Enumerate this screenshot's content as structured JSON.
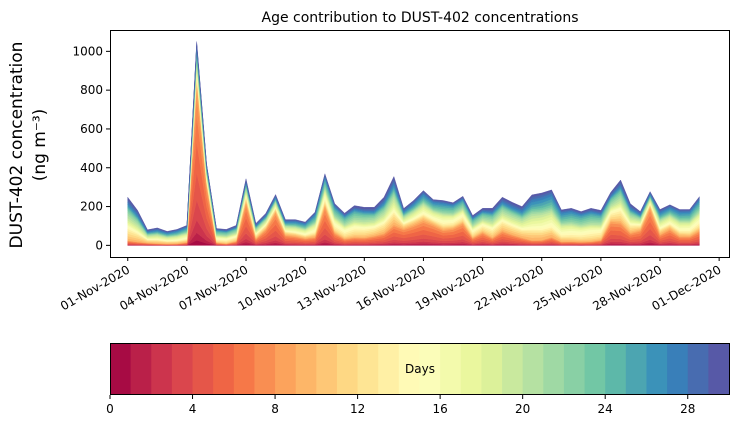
{
  "chart_data": {
    "type": "area",
    "stacked": true,
    "title": "Age contribution to DUST-402 concentrations",
    "ylabel_line1": "DUST-402 concentration",
    "ylabel_line2": "(ng m⁻³)",
    "xlabel": "",
    "ylim": [
      -60,
      1110
    ],
    "yticks": [
      0,
      200,
      400,
      600,
      800,
      1000
    ],
    "x_start": "2020-11-01T00:00",
    "x_step_hours": 12,
    "xlim_days": [
      -0.9,
      30.5
    ],
    "xticks_days": [
      0,
      3,
      6,
      9,
      12,
      15,
      18,
      21,
      24,
      27,
      30
    ],
    "xtick_labels": [
      "01-Nov-2020",
      "04-Nov-2020",
      "07-Nov-2020",
      "10-Nov-2020",
      "13-Nov-2020",
      "16-Nov-2020",
      "19-Nov-2020",
      "22-Nov-2020",
      "25-Nov-2020",
      "28-Nov-2020",
      "01-Dec-2020"
    ],
    "total": [
      248,
      180,
      80,
      90,
      72,
      82,
      103,
      1050,
      420,
      87,
      82,
      103,
      343,
      113,
      164,
      262,
      133,
      133,
      120,
      171,
      369,
      215,
      166,
      205,
      196,
      196,
      248,
      355,
      190,
      231,
      282,
      236,
      231,
      220,
      253,
      154,
      191,
      191,
      248,
      222,
      200,
      260,
      270,
      286,
      183,
      191,
      174,
      191,
      180,
      273,
      337,
      214,
      174,
      277,
      185,
      209,
      185,
      185,
      251
    ],
    "fresh_fraction": [
      0.1,
      0.1,
      0.15,
      0.1,
      0.1,
      0.1,
      0.15,
      0.8,
      0.75,
      0.15,
      0.1,
      0.2,
      0.65,
      0.3,
      0.5,
      0.65,
      0.4,
      0.35,
      0.3,
      0.25,
      0.55,
      0.3,
      0.2,
      0.2,
      0.2,
      0.25,
      0.25,
      0.3,
      0.45,
      0.45,
      0.45,
      0.45,
      0.35,
      0.4,
      0.45,
      0.25,
      0.35,
      0.2,
      0.3,
      0.25,
      0.2,
      0.1,
      0.1,
      0.15,
      0.1,
      0.1,
      0.1,
      0.1,
      0.15,
      0.45,
      0.35,
      0.3,
      0.45,
      0.7,
      0.3,
      0.4,
      0.25,
      0.25,
      0.3
    ],
    "series_count": 30,
    "colormap": "Spectral",
    "colormap_anchors": [
      "#9e0142",
      "#d53e4f",
      "#f46d43",
      "#fdae61",
      "#fee08b",
      "#ffffbf",
      "#e6f598",
      "#abdda4",
      "#66c2a5",
      "#3288bd",
      "#5e4fa2"
    ],
    "colorbar": {
      "label": "Days",
      "range": [
        0,
        30
      ],
      "ticks": [
        0,
        4,
        8,
        12,
        16,
        20,
        24,
        28
      ],
      "tick_labels": [
        "0",
        "4",
        "8",
        "12",
        "16",
        "20",
        "24",
        "28"
      ],
      "orientation": "horizontal",
      "placement": "bottom"
    }
  }
}
